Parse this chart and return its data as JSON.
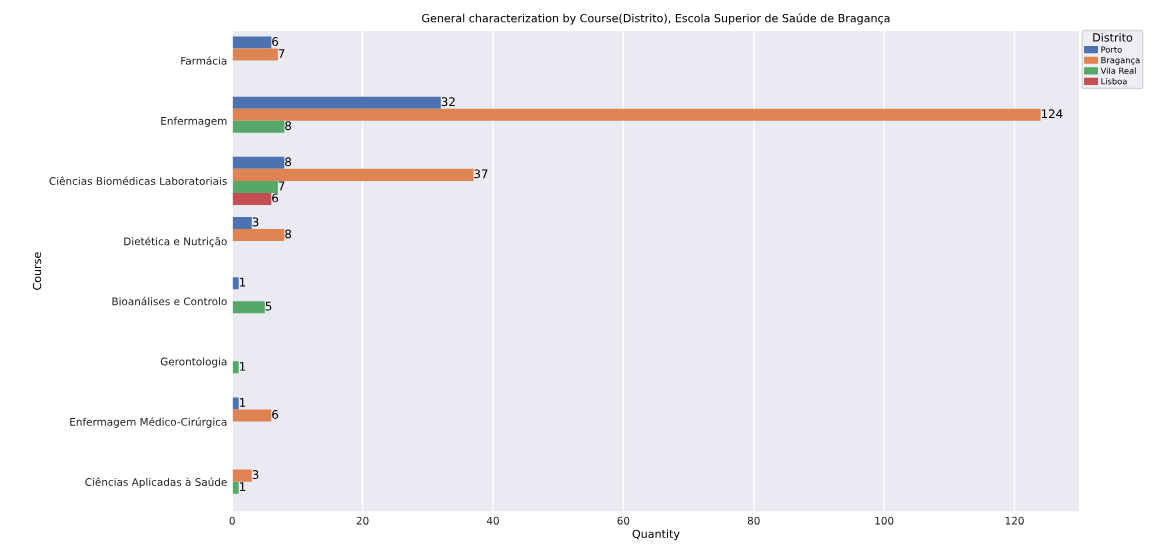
{
  "chart_data": {
    "type": "bar",
    "orientation": "horizontal",
    "title": "General characterization by Course(Distrito), Escola Superior de Saúde de Bragança",
    "xlabel": "Quantity",
    "ylabel": "Course",
    "categories": [
      "Farmácia",
      "Enfermagem",
      "Ciências Biomédicas Laboratoriais",
      "Dietética e Nutrição",
      "Bioanálises e Controlo",
      "Gerontologia",
      "Enfermagem Médico-Cirúrgica",
      "Ciências Aplicadas à Saúde"
    ],
    "series": [
      {
        "name": "Porto",
        "color": "#4c72b0",
        "values": [
          6,
          32,
          8,
          3,
          1,
          null,
          1,
          null
        ]
      },
      {
        "name": "Bragança",
        "color": "#dd8452",
        "values": [
          7,
          124,
          37,
          8,
          null,
          null,
          6,
          3
        ]
      },
      {
        "name": "Vila Real",
        "color": "#55a868",
        "values": [
          null,
          8,
          7,
          null,
          5,
          1,
          null,
          1
        ]
      },
      {
        "name": "Lisboa",
        "color": "#c44e52",
        "values": [
          null,
          null,
          6,
          null,
          null,
          null,
          null,
          null
        ]
      }
    ],
    "xlim": [
      0,
      130
    ],
    "xticks": [
      0,
      20,
      40,
      60,
      80,
      100,
      120
    ],
    "grid": "x",
    "legend": "top right",
    "legend_title": "Distrito",
    "data_labels": true
  }
}
